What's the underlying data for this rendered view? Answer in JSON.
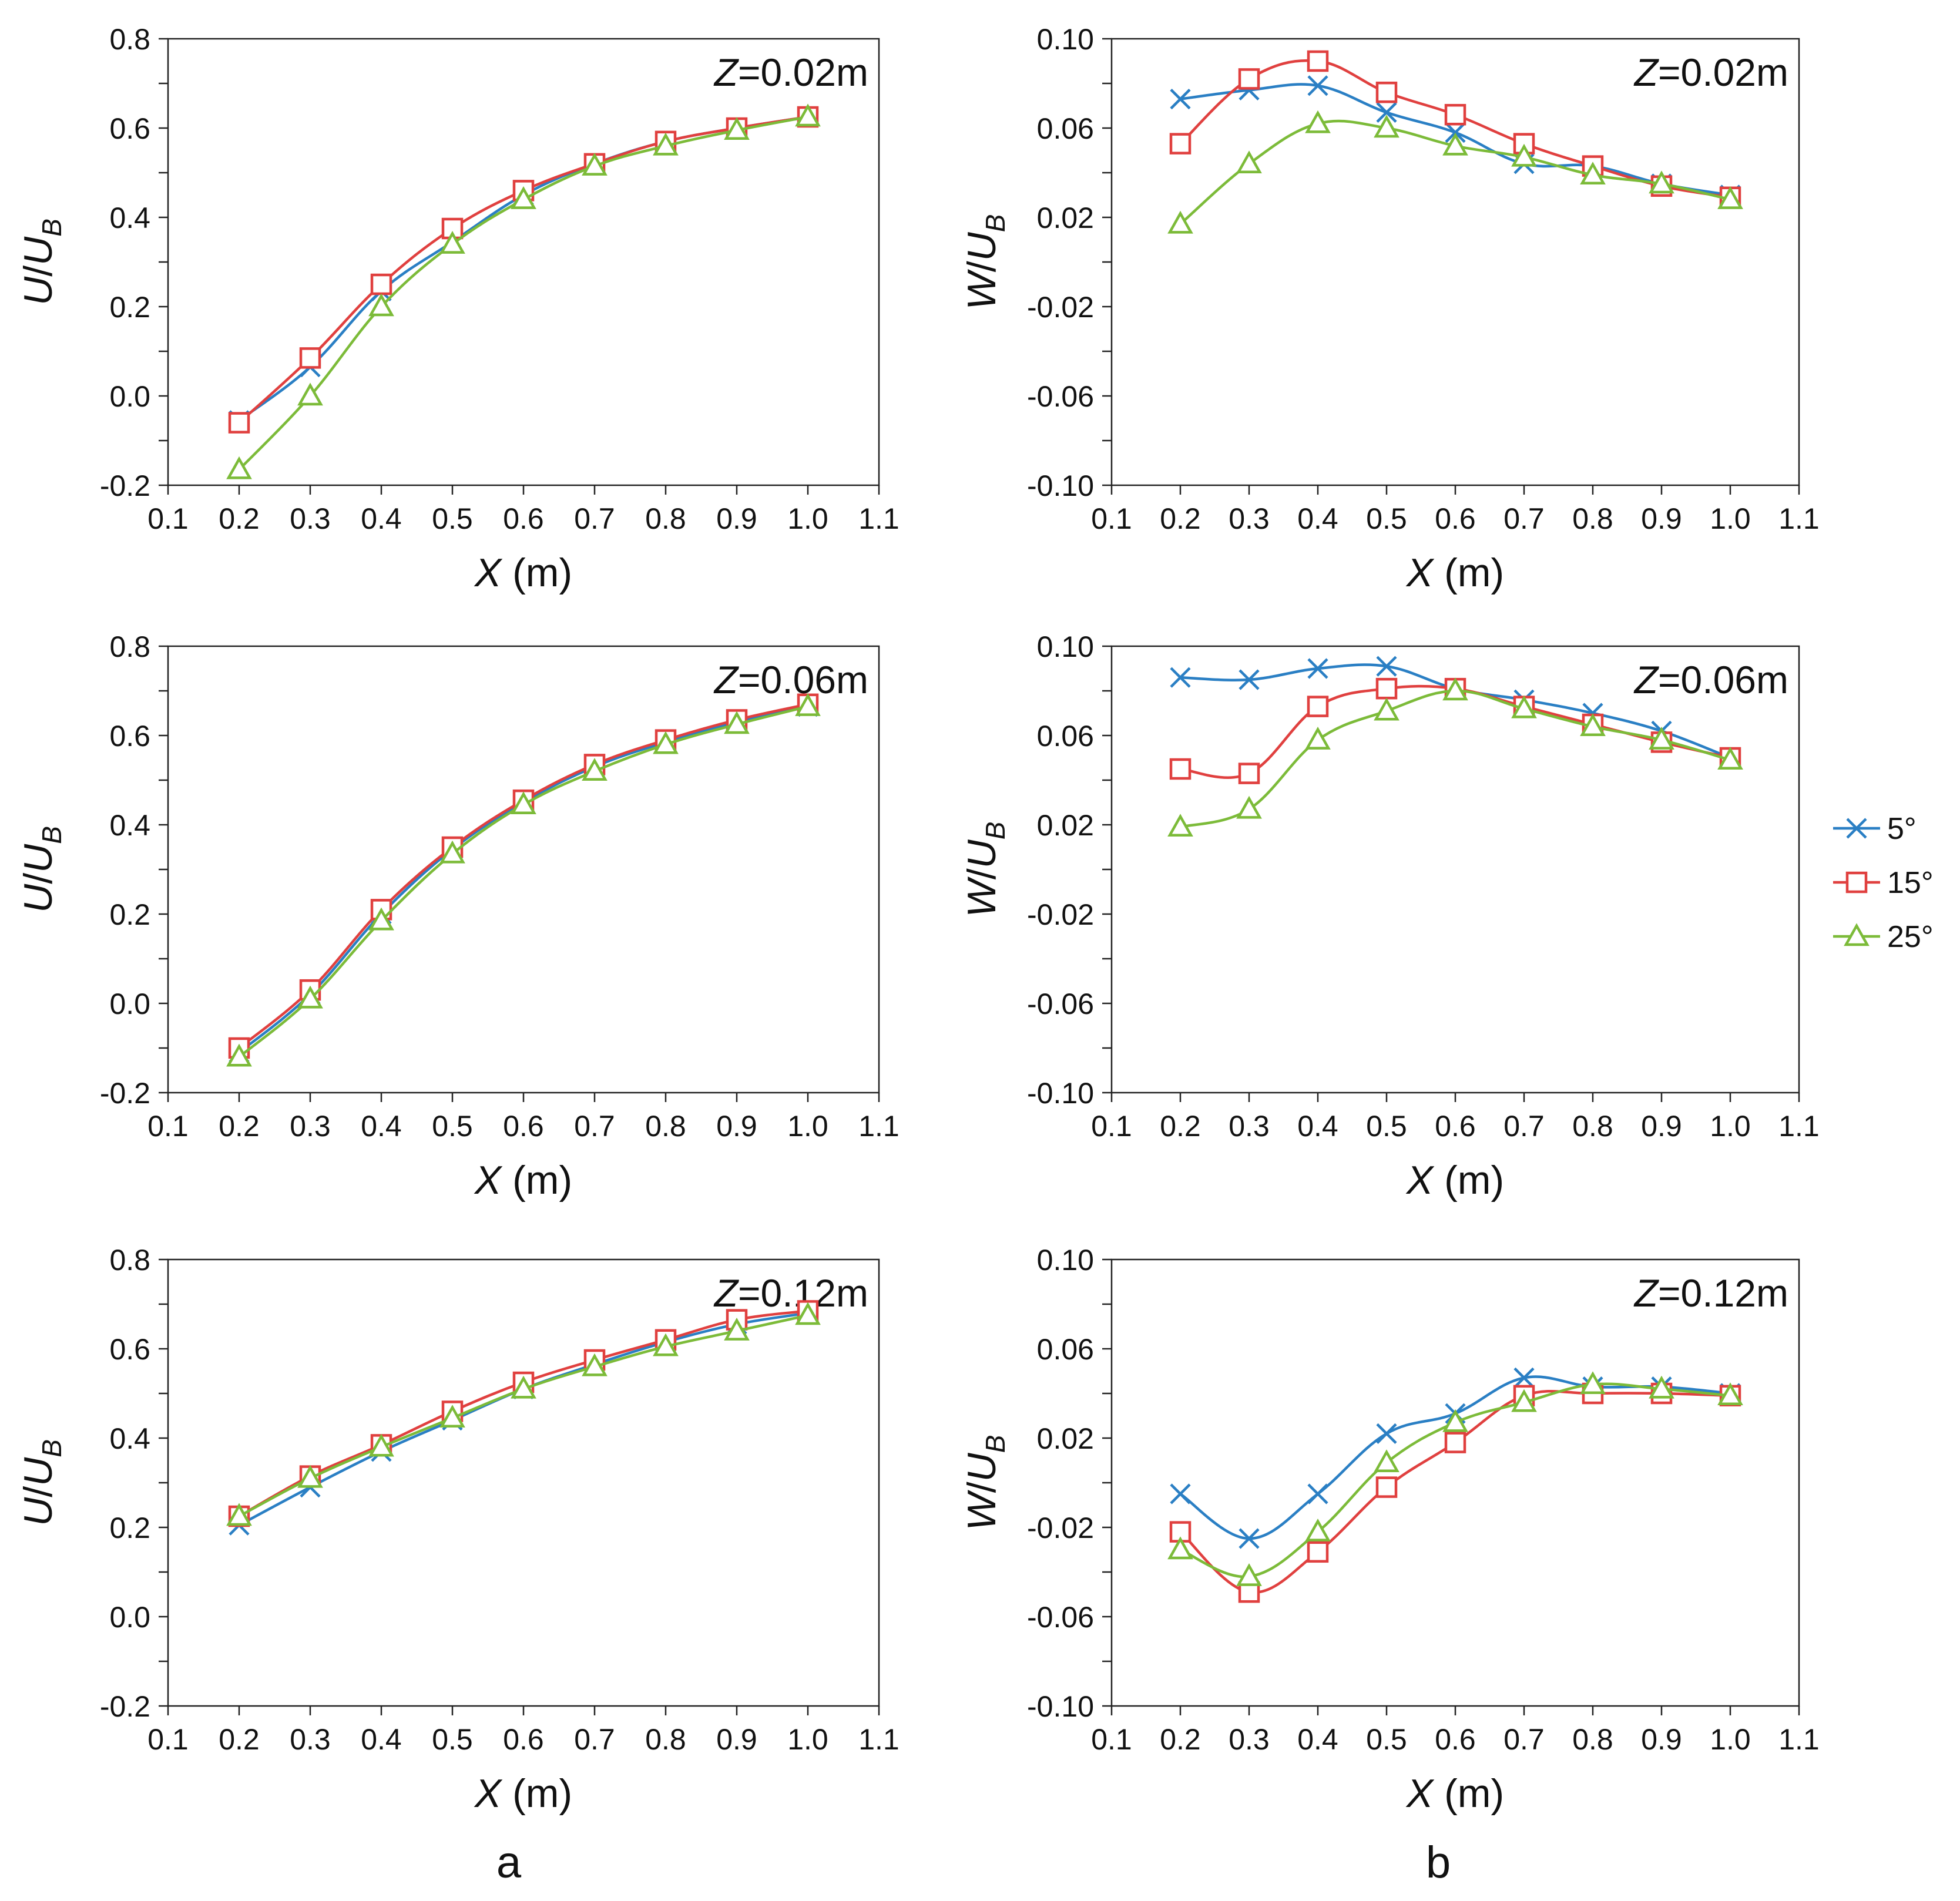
{
  "colors": {
    "5deg": "#2a7fc4",
    "15deg": "#e0403f",
    "25deg": "#7cbb39"
  },
  "panel_letters": {
    "a": "a",
    "b": "b"
  },
  "legend": [
    {
      "key": "5deg",
      "label": "5°",
      "marker": "x"
    },
    {
      "key": "15deg",
      "label": "15°",
      "marker": "square"
    },
    {
      "key": "25deg",
      "label": "25°",
      "marker": "triangle"
    }
  ],
  "chart_data": [
    {
      "type": "line",
      "id": "u-z002",
      "annotation": {
        "italic": "Z",
        "text": "=0.02m"
      },
      "xlabel": {
        "italic": "X",
        "rest": " (m)"
      },
      "ylabel": {
        "italic": "U",
        "slash": "/",
        "italic2": "U",
        "sub": "B"
      },
      "xlim": [
        0.1,
        1.1
      ],
      "ylim": [
        -0.2,
        0.8
      ],
      "xticks": [
        "0.1",
        "0.2",
        "0.3",
        "0.4",
        "0.5",
        "0.6",
        "0.7",
        "0.8",
        "0.9",
        "1.0",
        "1.1"
      ],
      "yticks": [
        "-0.2",
        "0.0",
        "0.2",
        "0.4",
        "0.6",
        "0.8"
      ],
      "x": [
        0.2,
        0.3,
        0.4,
        0.5,
        0.6,
        0.7,
        0.8,
        0.9,
        1.0
      ],
      "series": [
        {
          "key": "5deg",
          "name": "5°",
          "values": [
            -0.055,
            0.065,
            0.235,
            0.345,
            0.45,
            0.52,
            0.57,
            0.6,
            0.625
          ]
        },
        {
          "key": "15deg",
          "name": "15°",
          "values": [
            -0.06,
            0.085,
            0.25,
            0.375,
            0.46,
            0.52,
            0.57,
            0.6,
            0.625
          ]
        },
        {
          "key": "25deg",
          "name": "25°",
          "values": [
            -0.165,
            0.0,
            0.2,
            0.34,
            0.44,
            0.515,
            0.56,
            0.595,
            0.625
          ]
        }
      ]
    },
    {
      "type": "line",
      "id": "w-z002",
      "annotation": {
        "italic": "Z",
        "text": "=0.02m"
      },
      "xlabel": {
        "italic": "X",
        "rest": " (m)"
      },
      "ylabel": {
        "italic": "W",
        "slash": "/",
        "italic2": "U",
        "sub": "B"
      },
      "xlim": [
        0.1,
        1.1
      ],
      "ylim": [
        -0.1,
        0.1
      ],
      "xticks": [
        "0.1",
        "0.2",
        "0.3",
        "0.4",
        "0.5",
        "0.6",
        "0.7",
        "0.8",
        "0.9",
        "1.0",
        "1.1"
      ],
      "yticks": [
        "-0.10",
        "-0.06",
        "-0.02",
        "0.02",
        "0.06",
        "0.10"
      ],
      "x": [
        0.2,
        0.3,
        0.4,
        0.5,
        0.6,
        0.7,
        0.8,
        0.9,
        1.0
      ],
      "series": [
        {
          "key": "5deg",
          "name": "5°",
          "values": [
            0.073,
            0.077,
            0.079,
            0.067,
            0.058,
            0.044,
            0.043,
            0.035,
            0.03
          ]
        },
        {
          "key": "15deg",
          "name": "15°",
          "values": [
            0.053,
            0.082,
            0.09,
            0.076,
            0.066,
            0.053,
            0.043,
            0.034,
            0.029
          ]
        },
        {
          "key": "25deg",
          "name": "25°",
          "values": [
            0.017,
            0.044,
            0.062,
            0.06,
            0.052,
            0.047,
            0.039,
            0.035,
            0.028
          ]
        }
      ]
    },
    {
      "type": "line",
      "id": "u-z006",
      "annotation": {
        "italic": "Z",
        "text": "=0.06m"
      },
      "xlabel": {
        "italic": "X",
        "rest": " (m)"
      },
      "ylabel": {
        "italic": "U",
        "slash": "/",
        "italic2": "U",
        "sub": "B"
      },
      "xlim": [
        0.1,
        1.1
      ],
      "ylim": [
        -0.2,
        0.8
      ],
      "xticks": [
        "0.1",
        "0.2",
        "0.3",
        "0.4",
        "0.5",
        "0.6",
        "0.7",
        "0.8",
        "0.9",
        "1.0",
        "1.1"
      ],
      "yticks": [
        "-0.2",
        "0.0",
        "0.2",
        "0.4",
        "0.6",
        "0.8"
      ],
      "x": [
        0.2,
        0.3,
        0.4,
        0.5,
        0.6,
        0.7,
        0.8,
        0.9,
        1.0
      ],
      "series": [
        {
          "key": "5deg",
          "name": "5°",
          "values": [
            -0.11,
            0.02,
            0.2,
            0.345,
            0.45,
            0.53,
            0.585,
            0.63,
            0.665
          ]
        },
        {
          "key": "15deg",
          "name": "15°",
          "values": [
            -0.1,
            0.03,
            0.21,
            0.35,
            0.455,
            0.535,
            0.59,
            0.635,
            0.67
          ]
        },
        {
          "key": "25deg",
          "name": "25°",
          "values": [
            -0.12,
            0.01,
            0.185,
            0.335,
            0.445,
            0.52,
            0.58,
            0.625,
            0.665
          ]
        }
      ]
    },
    {
      "type": "line",
      "id": "w-z006",
      "annotation": {
        "italic": "Z",
        "text": "=0.06m"
      },
      "xlabel": {
        "italic": "X",
        "rest": " (m)"
      },
      "ylabel": {
        "italic": "W",
        "slash": "/",
        "italic2": "U",
        "sub": "B"
      },
      "xlim": [
        0.1,
        1.1
      ],
      "ylim": [
        -0.1,
        0.1
      ],
      "xticks": [
        "0.1",
        "0.2",
        "0.3",
        "0.4",
        "0.5",
        "0.6",
        "0.7",
        "0.8",
        "0.9",
        "1.0",
        "1.1"
      ],
      "yticks": [
        "-0.10",
        "-0.06",
        "-0.02",
        "0.02",
        "0.06",
        "0.10"
      ],
      "x": [
        0.2,
        0.3,
        0.4,
        0.5,
        0.6,
        0.7,
        0.8,
        0.9,
        1.0
      ],
      "series": [
        {
          "key": "5deg",
          "name": "5°",
          "values": [
            0.086,
            0.085,
            0.09,
            0.091,
            0.081,
            0.076,
            0.07,
            0.062,
            0.05
          ]
        },
        {
          "key": "15deg",
          "name": "15°",
          "values": [
            0.045,
            0.043,
            0.073,
            0.081,
            0.081,
            0.073,
            0.065,
            0.057,
            0.05
          ]
        },
        {
          "key": "25deg",
          "name": "25°",
          "values": [
            0.019,
            0.027,
            0.058,
            0.071,
            0.08,
            0.072,
            0.064,
            0.058,
            0.049
          ]
        }
      ]
    },
    {
      "type": "line",
      "id": "u-z012",
      "annotation": {
        "italic": "Z",
        "text": "=0.12m"
      },
      "xlabel": {
        "italic": "X",
        "rest": " (m)"
      },
      "ylabel": {
        "italic": "U",
        "slash": "/",
        "italic2": "U",
        "sub": "B"
      },
      "xlim": [
        0.1,
        1.1
      ],
      "ylim": [
        -0.2,
        0.8
      ],
      "xticks": [
        "0.1",
        "0.2",
        "0.3",
        "0.4",
        "0.5",
        "0.6",
        "0.7",
        "0.8",
        "0.9",
        "1.0",
        "1.1"
      ],
      "yticks": [
        "-0.2",
        "0.0",
        "0.2",
        "0.4",
        "0.6",
        "0.8"
      ],
      "x": [
        0.2,
        0.3,
        0.4,
        0.5,
        0.6,
        0.7,
        0.8,
        0.9,
        1.0
      ],
      "series": [
        {
          "key": "5deg",
          "name": "5°",
          "values": [
            0.205,
            0.29,
            0.37,
            0.44,
            0.51,
            0.565,
            0.615,
            0.655,
            0.68
          ]
        },
        {
          "key": "15deg",
          "name": "15°",
          "values": [
            0.225,
            0.315,
            0.385,
            0.46,
            0.525,
            0.575,
            0.62,
            0.665,
            0.685
          ]
        },
        {
          "key": "25deg",
          "name": "25°",
          "values": [
            0.225,
            0.31,
            0.38,
            0.445,
            0.51,
            0.56,
            0.605,
            0.64,
            0.675
          ]
        }
      ]
    },
    {
      "type": "line",
      "id": "w-z012",
      "annotation": {
        "italic": "Z",
        "text": "=0.12m"
      },
      "xlabel": {
        "italic": "X",
        "rest": " (m)"
      },
      "ylabel": {
        "italic": "W",
        "slash": "/",
        "italic2": "U",
        "sub": "B"
      },
      "xlim": [
        0.1,
        1.1
      ],
      "ylim": [
        -0.1,
        0.1
      ],
      "xticks": [
        "0.1",
        "0.2",
        "0.3",
        "0.4",
        "0.5",
        "0.6",
        "0.7",
        "0.8",
        "0.9",
        "1.0",
        "1.1"
      ],
      "yticks": [
        "-0.10",
        "-0.06",
        "-0.02",
        "0.02",
        "0.06",
        "0.10"
      ],
      "x": [
        0.2,
        0.3,
        0.4,
        0.5,
        0.6,
        0.7,
        0.8,
        0.9,
        1.0
      ],
      "series": [
        {
          "key": "5deg",
          "name": "5°",
          "values": [
            -0.005,
            -0.025,
            -0.005,
            0.022,
            0.031,
            0.047,
            0.043,
            0.043,
            0.04
          ]
        },
        {
          "key": "15deg",
          "name": "15°",
          "values": [
            -0.022,
            -0.049,
            -0.031,
            -0.002,
            0.018,
            0.039,
            0.04,
            0.04,
            0.039
          ]
        },
        {
          "key": "25deg",
          "name": "25°",
          "values": [
            -0.03,
            -0.042,
            -0.022,
            0.009,
            0.027,
            0.036,
            0.044,
            0.042,
            0.039
          ]
        }
      ]
    }
  ]
}
